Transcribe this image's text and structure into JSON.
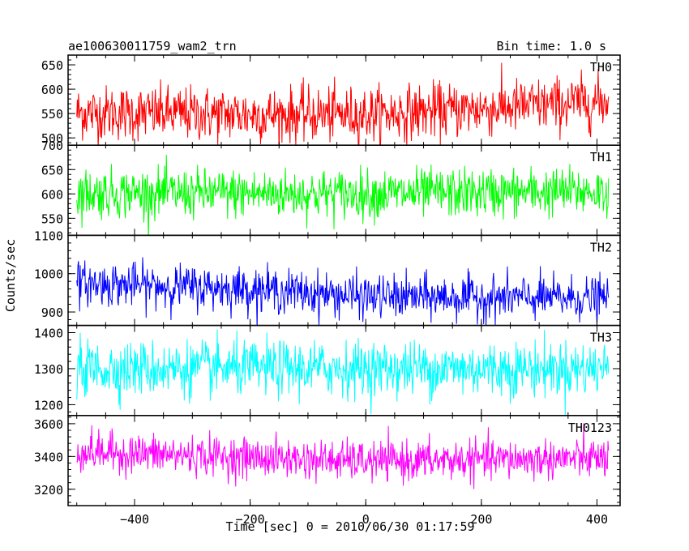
{
  "header": {
    "title": "ae100630011759_wam2_trn",
    "bin_time": "Bin time: 1.0 s"
  },
  "axes": {
    "ylabel": "Counts/sec",
    "xlabel": "Time [sec] 0 = 2010/06/30 01:17:59"
  },
  "chart_data": {
    "type": "line",
    "title": "ae100630011759_wam2_trn",
    "xlabel": "Time [sec] 0 = 2010/06/30 01:17:59",
    "ylabel": "Counts/sec",
    "xlim": [
      -515,
      440
    ],
    "x_data_range": [
      -500,
      420
    ],
    "bin_time_s": 1.0,
    "xticks_major": [
      -400,
      -200,
      0,
      200,
      400
    ],
    "xtick_labels": [
      "−400",
      "−200",
      "0",
      "200",
      "400"
    ],
    "grid": false,
    "series": [
      {
        "name": "TH0",
        "color": "#ff0000",
        "ylim": [
          485,
          670
        ],
        "ticks": [
          500,
          550,
          600,
          650
        ],
        "tick_labels": [
          "500",
          "550",
          "600",
          "650"
        ],
        "mean_profile": [
          [
            -500,
            552
          ],
          [
            -200,
            548
          ],
          [
            0,
            548
          ],
          [
            200,
            560
          ],
          [
            420,
            575
          ]
        ],
        "noise_sigma": 28
      },
      {
        "name": "TH1",
        "color": "#00ff00",
        "ylim": [
          515,
          700
        ],
        "ticks": [
          550,
          600,
          650,
          700
        ],
        "tick_labels": [
          "550",
          "600",
          "650",
          "700"
        ],
        "mean_profile": [
          [
            -500,
            602
          ],
          [
            0,
            600
          ],
          [
            420,
            605
          ]
        ],
        "noise_sigma": 25
      },
      {
        "name": "TH2",
        "color": "#0000ff",
        "ylim": [
          865,
          1100
        ],
        "ticks": [
          900,
          1000,
          1100
        ],
        "tick_labels": [
          "900",
          "1000",
          "1100"
        ],
        "mean_profile": [
          [
            -500,
            975
          ],
          [
            -200,
            960
          ],
          [
            0,
            940
          ],
          [
            420,
            935
          ]
        ],
        "noise_sigma": 28
      },
      {
        "name": "TH3",
        "color": "#00ffff",
        "ylim": [
          1170,
          1420
        ],
        "ticks": [
          1200,
          1300,
          1400
        ],
        "tick_labels": [
          "1200",
          "1300",
          "1400"
        ],
        "mean_profile": [
          [
            -500,
            1300
          ],
          [
            0,
            1300
          ],
          [
            420,
            1300
          ]
        ],
        "noise_sigma": 38
      },
      {
        "name": "TH0123",
        "color": "#ff00ff",
        "ylim": [
          3100,
          3650
        ],
        "ticks": [
          3200,
          3400,
          3600
        ],
        "tick_labels": [
          "3200",
          "3400",
          "3600"
        ],
        "mean_profile": [
          [
            -500,
            3430
          ],
          [
            0,
            3370
          ],
          [
            420,
            3390
          ]
        ],
        "noise_sigma": 60
      }
    ]
  }
}
